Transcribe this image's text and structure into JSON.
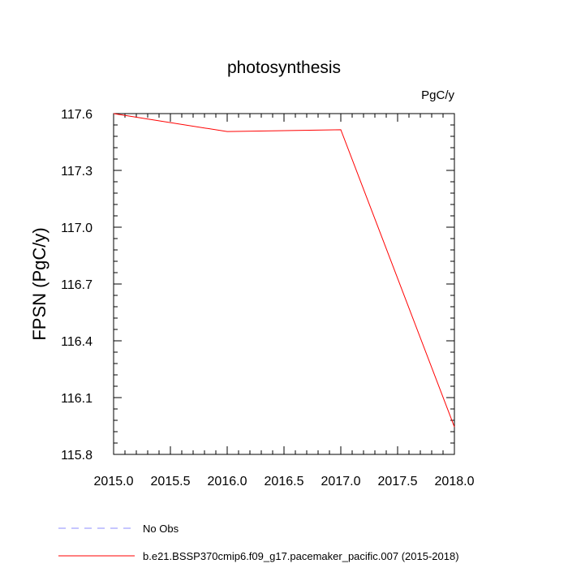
{
  "chart_data": {
    "type": "line",
    "title": "photosynthesis",
    "units": "PgC/y",
    "ylabel": "FPSN  (PgC/y)",
    "xlabel": "",
    "xlim": [
      2015.0,
      2018.0
    ],
    "ylim": [
      115.8,
      117.6
    ],
    "xticks": [
      "2015.0",
      "2015.5",
      "2016.0",
      "2016.5",
      "2017.0",
      "2017.5",
      "2018.0"
    ],
    "yticks": [
      "115.8",
      "116.1",
      "116.4",
      "116.7",
      "117.0",
      "117.3",
      "117.6"
    ],
    "grid": false,
    "legend_position": "bottom-left",
    "series": [
      {
        "name": "b.e21.BSSP370cmip6.f09_g17.pacemaker_pacific.007 (2015-2018)",
        "color": "#ff0000",
        "dash": "solid",
        "x": [
          2015,
          2016,
          2017,
          2018
        ],
        "y": [
          117.6,
          117.505,
          117.515,
          115.945
        ]
      }
    ],
    "legend": [
      {
        "label": "No Obs",
        "color": "#8c8cff",
        "dash": "dashed"
      },
      {
        "label": "b.e21.BSSP370cmip6.f09_g17.pacemaker_pacific.007 (2015-2018)",
        "color": "#ff0000",
        "dash": "solid"
      }
    ]
  }
}
